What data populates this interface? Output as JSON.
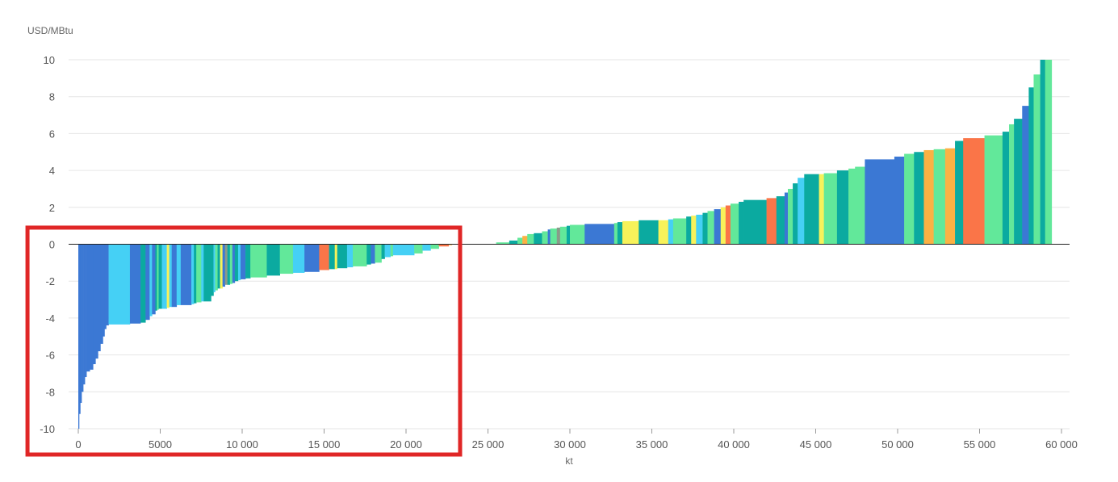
{
  "chart_data": {
    "type": "bar",
    "xlabel": "kt",
    "ylabel": "USD/MBtu",
    "xlim": [
      0,
      60000
    ],
    "ylim": [
      -10,
      10
    ],
    "x_ticks": [
      {
        "value": 0,
        "label": "0"
      },
      {
        "value": 5000,
        "label": "5000"
      },
      {
        "value": 10000,
        "label": "10 000"
      },
      {
        "value": 15000,
        "label": "15 000"
      },
      {
        "value": 20000,
        "label": "20 000"
      },
      {
        "value": 25000,
        "label": "25 000"
      },
      {
        "value": 30000,
        "label": "30 000"
      },
      {
        "value": 35000,
        "label": "35 000"
      },
      {
        "value": 40000,
        "label": "40 000"
      },
      {
        "value": 45000,
        "label": "45 000"
      },
      {
        "value": 50000,
        "label": "50 000"
      },
      {
        "value": 55000,
        "label": "55 000"
      },
      {
        "value": 60000,
        "label": "60 000"
      }
    ],
    "y_ticks": [
      {
        "value": 10,
        "label": "10"
      },
      {
        "value": 8,
        "label": "8"
      },
      {
        "value": 6,
        "label": "6"
      },
      {
        "value": 4,
        "label": "4"
      },
      {
        "value": 2,
        "label": "2"
      },
      {
        "value": 0,
        "label": "0"
      },
      {
        "value": -2,
        "label": "-2"
      },
      {
        "value": -4,
        "label": "-4"
      },
      {
        "value": -6,
        "label": "-6"
      },
      {
        "value": -8,
        "label": "-8"
      },
      {
        "value": -10,
        "label": "-10"
      }
    ],
    "grid": true,
    "legend": "none",
    "colors": {
      "blue": "#3b78d4",
      "cyan": "#45d0f5",
      "teal": "#0baaa0",
      "green": "#62e89a",
      "yellow": "#f7f25a",
      "orange": "#fbb144",
      "red": "#fa7548",
      "gray": "#8a9a8a"
    },
    "segments": [
      {
        "x0": 0,
        "x1": 50,
        "y": -10,
        "c": "blue"
      },
      {
        "x0": 50,
        "x1": 120,
        "y": -9.2,
        "c": "blue"
      },
      {
        "x0": 120,
        "x1": 200,
        "y": -8.6,
        "c": "blue"
      },
      {
        "x0": 200,
        "x1": 300,
        "y": -8.0,
        "c": "blue"
      },
      {
        "x0": 300,
        "x1": 400,
        "y": -7.6,
        "c": "blue"
      },
      {
        "x0": 400,
        "x1": 500,
        "y": -7.2,
        "c": "blue"
      },
      {
        "x0": 500,
        "x1": 700,
        "y": -6.9,
        "c": "blue"
      },
      {
        "x0": 700,
        "x1": 900,
        "y": -6.8,
        "c": "blue"
      },
      {
        "x0": 900,
        "x1": 1050,
        "y": -6.5,
        "c": "blue"
      },
      {
        "x0": 1050,
        "x1": 1200,
        "y": -6.2,
        "c": "blue"
      },
      {
        "x0": 1200,
        "x1": 1350,
        "y": -5.8,
        "c": "blue"
      },
      {
        "x0": 1350,
        "x1": 1500,
        "y": -5.4,
        "c": "blue"
      },
      {
        "x0": 1500,
        "x1": 1600,
        "y": -5.0,
        "c": "blue"
      },
      {
        "x0": 1600,
        "x1": 1700,
        "y": -4.6,
        "c": "blue"
      },
      {
        "x0": 1700,
        "x1": 1850,
        "y": -4.4,
        "c": "blue"
      },
      {
        "x0": 1850,
        "x1": 3150,
        "y": -4.35,
        "c": "cyan"
      },
      {
        "x0": 3150,
        "x1": 3800,
        "y": -4.3,
        "c": "blue"
      },
      {
        "x0": 3800,
        "x1": 4100,
        "y": -4.25,
        "c": "teal"
      },
      {
        "x0": 4100,
        "x1": 4350,
        "y": -4.1,
        "c": "blue"
      },
      {
        "x0": 4350,
        "x1": 4500,
        "y": -3.9,
        "c": "cyan"
      },
      {
        "x0": 4500,
        "x1": 4700,
        "y": -3.8,
        "c": "blue"
      },
      {
        "x0": 4700,
        "x1": 4800,
        "y": -3.6,
        "c": "teal"
      },
      {
        "x0": 4800,
        "x1": 4900,
        "y": -3.55,
        "c": "green"
      },
      {
        "x0": 4900,
        "x1": 5100,
        "y": -3.5,
        "c": "teal"
      },
      {
        "x0": 5100,
        "x1": 5400,
        "y": -3.5,
        "c": "cyan"
      },
      {
        "x0": 5400,
        "x1": 5550,
        "y": -3.45,
        "c": "yellow"
      },
      {
        "x0": 5550,
        "x1": 5700,
        "y": -3.4,
        "c": "cyan"
      },
      {
        "x0": 5700,
        "x1": 6000,
        "y": -3.4,
        "c": "blue"
      },
      {
        "x0": 6000,
        "x1": 6250,
        "y": -3.3,
        "c": "cyan"
      },
      {
        "x0": 6250,
        "x1": 6900,
        "y": -3.3,
        "c": "blue"
      },
      {
        "x0": 6900,
        "x1": 7050,
        "y": -3.25,
        "c": "cyan"
      },
      {
        "x0": 7050,
        "x1": 7200,
        "y": -3.2,
        "c": "teal"
      },
      {
        "x0": 7200,
        "x1": 7500,
        "y": -3.15,
        "c": "green"
      },
      {
        "x0": 7500,
        "x1": 7650,
        "y": -3.1,
        "c": "cyan"
      },
      {
        "x0": 7650,
        "x1": 8100,
        "y": -3.1,
        "c": "teal"
      },
      {
        "x0": 8100,
        "x1": 8250,
        "y": -2.8,
        "c": "teal"
      },
      {
        "x0": 8250,
        "x1": 8350,
        "y": -2.6,
        "c": "cyan"
      },
      {
        "x0": 8350,
        "x1": 8500,
        "y": -2.5,
        "c": "green"
      },
      {
        "x0": 8500,
        "x1": 8650,
        "y": -2.4,
        "c": "teal"
      },
      {
        "x0": 8650,
        "x1": 8800,
        "y": -2.4,
        "c": "yellow"
      },
      {
        "x0": 8800,
        "x1": 8950,
        "y": -2.3,
        "c": "blue"
      },
      {
        "x0": 8950,
        "x1": 9100,
        "y": -2.2,
        "c": "gray"
      },
      {
        "x0": 9100,
        "x1": 9250,
        "y": -2.2,
        "c": "teal"
      },
      {
        "x0": 9250,
        "x1": 9400,
        "y": -2.15,
        "c": "green"
      },
      {
        "x0": 9400,
        "x1": 9550,
        "y": -2.1,
        "c": "blue"
      },
      {
        "x0": 9550,
        "x1": 9750,
        "y": -2.0,
        "c": "teal"
      },
      {
        "x0": 9750,
        "x1": 9900,
        "y": -1.95,
        "c": "cyan"
      },
      {
        "x0": 9900,
        "x1": 10200,
        "y": -1.9,
        "c": "blue"
      },
      {
        "x0": 10200,
        "x1": 10500,
        "y": -1.85,
        "c": "teal"
      },
      {
        "x0": 10500,
        "x1": 11500,
        "y": -1.8,
        "c": "green"
      },
      {
        "x0": 11500,
        "x1": 12300,
        "y": -1.7,
        "c": "teal"
      },
      {
        "x0": 12300,
        "x1": 13100,
        "y": -1.6,
        "c": "green"
      },
      {
        "x0": 13100,
        "x1": 13800,
        "y": -1.55,
        "c": "cyan"
      },
      {
        "x0": 13800,
        "x1": 14700,
        "y": -1.5,
        "c": "blue"
      },
      {
        "x0": 14700,
        "x1": 15300,
        "y": -1.4,
        "c": "red"
      },
      {
        "x0": 15300,
        "x1": 15650,
        "y": -1.35,
        "c": "teal"
      },
      {
        "x0": 15650,
        "x1": 15800,
        "y": -1.35,
        "c": "yellow"
      },
      {
        "x0": 15800,
        "x1": 16400,
        "y": -1.3,
        "c": "teal"
      },
      {
        "x0": 16400,
        "x1": 16750,
        "y": -1.25,
        "c": "cyan"
      },
      {
        "x0": 16750,
        "x1": 17600,
        "y": -1.2,
        "c": "green"
      },
      {
        "x0": 17600,
        "x1": 17850,
        "y": -1.1,
        "c": "teal"
      },
      {
        "x0": 17850,
        "x1": 18100,
        "y": -1.05,
        "c": "blue"
      },
      {
        "x0": 18100,
        "x1": 18500,
        "y": -1.0,
        "c": "green"
      },
      {
        "x0": 18500,
        "x1": 18700,
        "y": -0.8,
        "c": "teal"
      },
      {
        "x0": 18700,
        "x1": 19050,
        "y": -0.7,
        "c": "cyan"
      },
      {
        "x0": 19050,
        "x1": 19200,
        "y": -0.65,
        "c": "green"
      },
      {
        "x0": 19200,
        "x1": 20500,
        "y": -0.6,
        "c": "cyan"
      },
      {
        "x0": 20500,
        "x1": 21000,
        "y": -0.5,
        "c": "green"
      },
      {
        "x0": 21000,
        "x1": 21500,
        "y": -0.35,
        "c": "cyan"
      },
      {
        "x0": 21500,
        "x1": 22000,
        "y": -0.25,
        "c": "green"
      },
      {
        "x0": 22000,
        "x1": 22600,
        "y": -0.12,
        "c": "red"
      },
      {
        "x0": 22600,
        "x1": 22800,
        "y": -0.05,
        "c": "orange"
      },
      {
        "x0": 25500,
        "x1": 26300,
        "y": 0.1,
        "c": "green"
      },
      {
        "x0": 26300,
        "x1": 26800,
        "y": 0.2,
        "c": "teal"
      },
      {
        "x0": 26800,
        "x1": 27100,
        "y": 0.35,
        "c": "green"
      },
      {
        "x0": 27100,
        "x1": 27400,
        "y": 0.45,
        "c": "orange"
      },
      {
        "x0": 27400,
        "x1": 27800,
        "y": 0.55,
        "c": "green"
      },
      {
        "x0": 27800,
        "x1": 28300,
        "y": 0.6,
        "c": "teal"
      },
      {
        "x0": 28300,
        "x1": 28650,
        "y": 0.7,
        "c": "green"
      },
      {
        "x0": 28650,
        "x1": 28800,
        "y": 0.8,
        "c": "blue"
      },
      {
        "x0": 28800,
        "x1": 29200,
        "y": 0.85,
        "c": "green"
      },
      {
        "x0": 29200,
        "x1": 29400,
        "y": 0.9,
        "c": "gray"
      },
      {
        "x0": 29400,
        "x1": 29800,
        "y": 0.95,
        "c": "green"
      },
      {
        "x0": 29800,
        "x1": 30000,
        "y": 1.0,
        "c": "teal"
      },
      {
        "x0": 30000,
        "x1": 30900,
        "y": 1.05,
        "c": "green"
      },
      {
        "x0": 30900,
        "x1": 32700,
        "y": 1.1,
        "c": "blue"
      },
      {
        "x0": 32700,
        "x1": 32900,
        "y": 1.15,
        "c": "green"
      },
      {
        "x0": 32900,
        "x1": 33200,
        "y": 1.2,
        "c": "teal"
      },
      {
        "x0": 33200,
        "x1": 34200,
        "y": 1.25,
        "c": "yellow"
      },
      {
        "x0": 34200,
        "x1": 35400,
        "y": 1.3,
        "c": "teal"
      },
      {
        "x0": 35400,
        "x1": 36000,
        "y": 1.3,
        "c": "yellow"
      },
      {
        "x0": 36000,
        "x1": 36300,
        "y": 1.35,
        "c": "cyan"
      },
      {
        "x0": 36300,
        "x1": 37100,
        "y": 1.4,
        "c": "green"
      },
      {
        "x0": 37100,
        "x1": 37400,
        "y": 1.5,
        "c": "teal"
      },
      {
        "x0": 37400,
        "x1": 37700,
        "y": 1.55,
        "c": "yellow"
      },
      {
        "x0": 37700,
        "x1": 38100,
        "y": 1.6,
        "c": "cyan"
      },
      {
        "x0": 38100,
        "x1": 38400,
        "y": 1.7,
        "c": "teal"
      },
      {
        "x0": 38400,
        "x1": 38800,
        "y": 1.8,
        "c": "green"
      },
      {
        "x0": 38800,
        "x1": 39200,
        "y": 1.9,
        "c": "blue"
      },
      {
        "x0": 39200,
        "x1": 39500,
        "y": 2.0,
        "c": "yellow"
      },
      {
        "x0": 39500,
        "x1": 39800,
        "y": 2.1,
        "c": "red"
      },
      {
        "x0": 39800,
        "x1": 40300,
        "y": 2.2,
        "c": "green"
      },
      {
        "x0": 40300,
        "x1": 40600,
        "y": 2.3,
        "c": "teal"
      },
      {
        "x0": 40600,
        "x1": 42000,
        "y": 2.4,
        "c": "teal"
      },
      {
        "x0": 42000,
        "x1": 42600,
        "y": 2.5,
        "c": "red"
      },
      {
        "x0": 42600,
        "x1": 43100,
        "y": 2.6,
        "c": "teal"
      },
      {
        "x0": 43100,
        "x1": 43300,
        "y": 2.8,
        "c": "blue"
      },
      {
        "x0": 43300,
        "x1": 43600,
        "y": 3.0,
        "c": "green"
      },
      {
        "x0": 43600,
        "x1": 43900,
        "y": 3.3,
        "c": "teal"
      },
      {
        "x0": 43900,
        "x1": 44300,
        "y": 3.6,
        "c": "cyan"
      },
      {
        "x0": 44300,
        "x1": 45200,
        "y": 3.8,
        "c": "teal"
      },
      {
        "x0": 45200,
        "x1": 45500,
        "y": 3.8,
        "c": "yellow"
      },
      {
        "x0": 45500,
        "x1": 46300,
        "y": 3.85,
        "c": "green"
      },
      {
        "x0": 46300,
        "x1": 47000,
        "y": 4.0,
        "c": "teal"
      },
      {
        "x0": 47000,
        "x1": 47400,
        "y": 4.1,
        "c": "green"
      },
      {
        "x0": 47400,
        "x1": 48000,
        "y": 4.2,
        "c": "green"
      },
      {
        "x0": 48000,
        "x1": 49800,
        "y": 4.6,
        "c": "blue"
      },
      {
        "x0": 49800,
        "x1": 50400,
        "y": 4.75,
        "c": "blue"
      },
      {
        "x0": 50400,
        "x1": 51000,
        "y": 4.9,
        "c": "green"
      },
      {
        "x0": 51000,
        "x1": 51600,
        "y": 5.0,
        "c": "teal"
      },
      {
        "x0": 51600,
        "x1": 52200,
        "y": 5.1,
        "c": "orange"
      },
      {
        "x0": 52200,
        "x1": 52900,
        "y": 5.15,
        "c": "green"
      },
      {
        "x0": 52900,
        "x1": 53500,
        "y": 5.2,
        "c": "orange"
      },
      {
        "x0": 53500,
        "x1": 54000,
        "y": 5.6,
        "c": "teal"
      },
      {
        "x0": 54000,
        "x1": 55300,
        "y": 5.75,
        "c": "red"
      },
      {
        "x0": 55300,
        "x1": 56400,
        "y": 5.9,
        "c": "green"
      },
      {
        "x0": 56400,
        "x1": 56800,
        "y": 6.1,
        "c": "teal"
      },
      {
        "x0": 56800,
        "x1": 57100,
        "y": 6.5,
        "c": "green"
      },
      {
        "x0": 57100,
        "x1": 57600,
        "y": 6.8,
        "c": "teal"
      },
      {
        "x0": 57600,
        "x1": 58000,
        "y": 7.5,
        "c": "blue"
      },
      {
        "x0": 58000,
        "x1": 58300,
        "y": 8.5,
        "c": "teal"
      },
      {
        "x0": 58300,
        "x1": 58700,
        "y": 9.2,
        "c": "green"
      },
      {
        "x0": 58700,
        "x1": 59000,
        "y": 10,
        "c": "teal"
      },
      {
        "x0": 59000,
        "x1": 59400,
        "y": 10,
        "c": "green"
      }
    ]
  },
  "highlight": {
    "x_range": [
      -3100,
      23300
    ],
    "y_range": [
      -11.4,
      0.9
    ],
    "color": "#e02626"
  }
}
